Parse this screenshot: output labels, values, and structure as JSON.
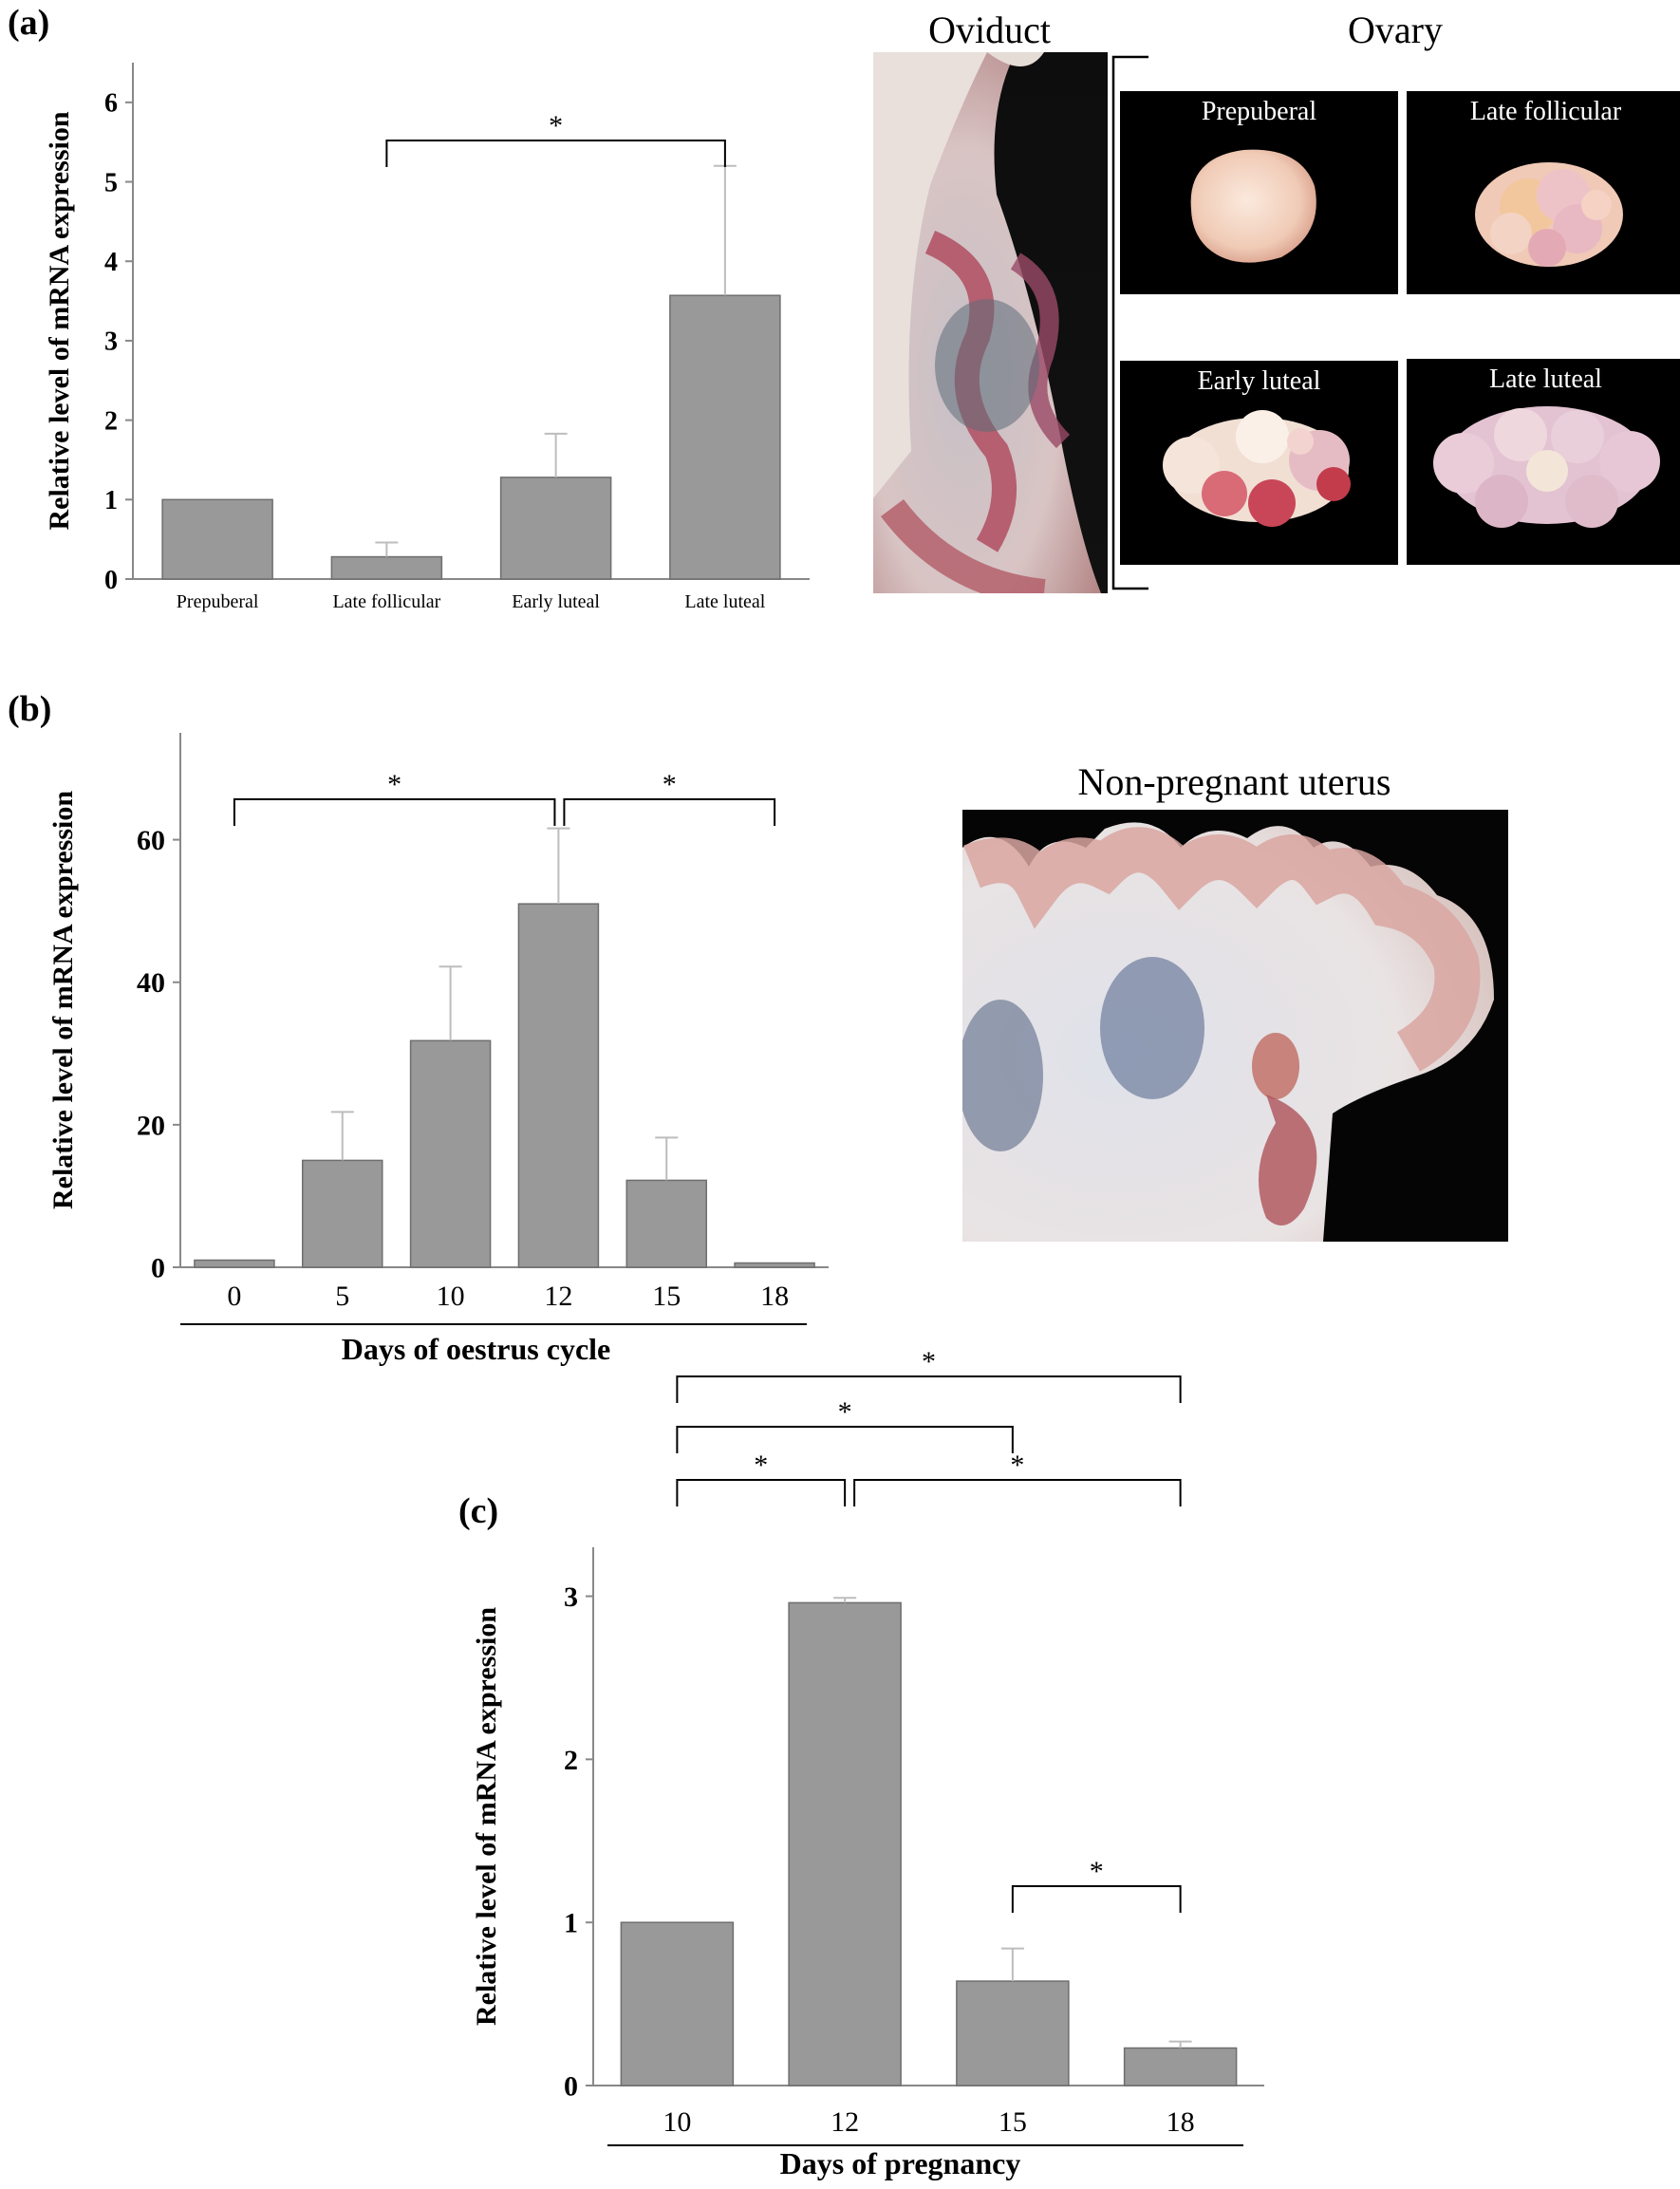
{
  "panels": {
    "a": "(a)",
    "b": "(b)",
    "c": "(c)"
  },
  "images": {
    "oviduct_title": "Oviduct",
    "ovary_title": "Ovary",
    "ovary_stages": [
      "Prepuberal",
      "Late follicular",
      "Early luteal",
      "Late luteal"
    ],
    "uterus_title": "Non-pregnant uterus"
  },
  "colors": {
    "bar": "#999999",
    "bar_edge": "#6e6e6e",
    "error": "#bdbdbd",
    "axis": "#888888"
  },
  "chart_data": [
    {
      "type": "bar",
      "ylabel": "Relative level of mRNA expression",
      "xlabel": "",
      "categories": [
        "Prepuberal",
        "Late follicular",
        "Early luteal",
        "Late luteal"
      ],
      "values": [
        1.0,
        0.28,
        1.28,
        3.57
      ],
      "errors": [
        0.0,
        0.18,
        0.55,
        1.63
      ],
      "ylim": [
        0,
        6.5
      ],
      "yticks": [
        0,
        1,
        2,
        3,
        4,
        5,
        6
      ],
      "significance": [
        {
          "from": 1,
          "to": 3,
          "label": "*"
        }
      ]
    },
    {
      "type": "bar",
      "ylabel": "Relative level of mRNA expression",
      "xlabel": "Days of oestrus cycle",
      "categories": [
        "0",
        "5",
        "10",
        "12",
        "15",
        "18"
      ],
      "values": [
        1.0,
        15.0,
        31.8,
        51.0,
        12.2,
        0.6
      ],
      "errors": [
        0.0,
        6.8,
        10.4,
        10.6,
        6.0,
        0.0
      ],
      "ylim": [
        0,
        75
      ],
      "yticks": [
        0,
        20,
        40,
        60
      ],
      "significance": [
        {
          "from": 0,
          "to": 3,
          "label": "*"
        },
        {
          "from": 3,
          "to": 5,
          "label": "*"
        }
      ]
    },
    {
      "type": "bar",
      "ylabel": "Relative level of mRNA expression",
      "xlabel": "Days of pregnancy",
      "categories": [
        "10",
        "12",
        "15",
        "18"
      ],
      "values": [
        1.0,
        2.96,
        0.64,
        0.23
      ],
      "errors": [
        0.0,
        0.03,
        0.2,
        0.04
      ],
      "ylim": [
        0,
        3.3
      ],
      "yticks": [
        0,
        1,
        2,
        3
      ],
      "significance": [
        {
          "from": 0,
          "to": 3,
          "label": "*"
        },
        {
          "from": 0,
          "to": 2,
          "label": "*"
        },
        {
          "from": 0,
          "to": 1,
          "label": "*"
        },
        {
          "from": 1,
          "to": 3,
          "label": "*"
        },
        {
          "from": 2,
          "to": 3,
          "label": "*"
        }
      ]
    }
  ]
}
